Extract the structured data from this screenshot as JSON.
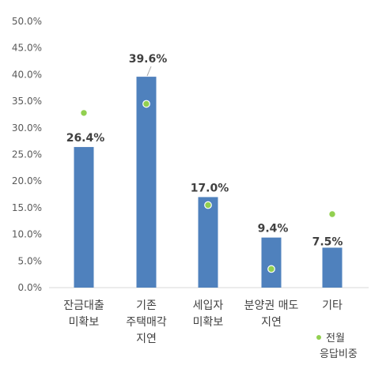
{
  "chart_data": {
    "type": "bar",
    "categories": [
      [
        "잔금대출",
        "미확보"
      ],
      [
        "기존",
        "주택매각",
        "지연"
      ],
      [
        "세입자",
        "미확보"
      ],
      [
        "분양권 매도",
        "지연"
      ],
      [
        "기타"
      ]
    ],
    "series": [
      {
        "type": "bar",
        "values": [
          26.4,
          39.6,
          17.0,
          9.4,
          7.5
        ],
        "labels": [
          "26.4%",
          "39.6%",
          "17.0%",
          "9.4%",
          "7.5%"
        ],
        "color": "#4F81BD"
      },
      {
        "type": "scatter",
        "name": [
          "전월",
          "응답비중"
        ],
        "values": [
          32.8,
          34.5,
          15.5,
          3.5,
          13.8
        ],
        "color": "#92D050"
      }
    ],
    "y_ticks": [
      "0.0%",
      "5.0%",
      "10.0%",
      "15.0%",
      "20.0%",
      "25.0%",
      "30.0%",
      "35.0%",
      "40.0%",
      "45.0%",
      "50.0%"
    ],
    "ylim": [
      0,
      50
    ],
    "grid": false,
    "legend_position": "bottom-right",
    "title": "",
    "xlabel": "",
    "ylabel": ""
  }
}
